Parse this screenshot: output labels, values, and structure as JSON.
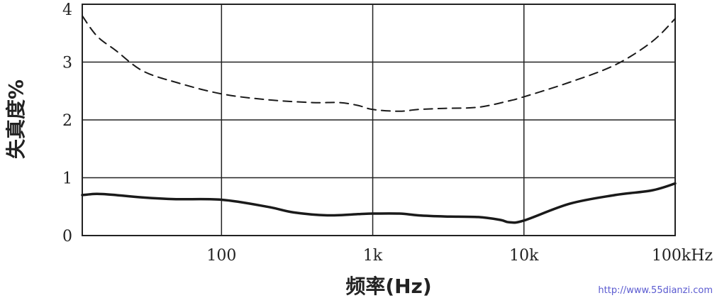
{
  "chart_data": {
    "type": "line",
    "title": "",
    "xlabel": "频率(Hz)",
    "ylabel": "失真度%",
    "x_scale": "log",
    "xlim": [
      12,
      100000
    ],
    "ylim": [
      0,
      4
    ],
    "x_ticks": [
      {
        "value": 100,
        "label": "100"
      },
      {
        "value": 1000,
        "label": "1k"
      },
      {
        "value": 10000,
        "label": "10k"
      },
      {
        "value": 100000,
        "label": "100kHz"
      }
    ],
    "y_ticks": [
      {
        "value": 0,
        "label": "0"
      },
      {
        "value": 1,
        "label": "1"
      },
      {
        "value": 2,
        "label": "2"
      },
      {
        "value": 3,
        "label": "3"
      },
      {
        "value": 4,
        "label": "4"
      }
    ],
    "grid": true,
    "series": [
      {
        "style": "dashed",
        "x": [
          12,
          15,
          20,
          30,
          50,
          100,
          200,
          400,
          600,
          800,
          1000,
          1500,
          2000,
          3000,
          5000,
          8000,
          10000,
          20000,
          40000,
          70000,
          100000
        ],
        "y": [
          3.8,
          3.45,
          3.2,
          2.85,
          2.65,
          2.45,
          2.35,
          2.3,
          2.3,
          2.25,
          2.18,
          2.15,
          2.18,
          2.2,
          2.22,
          2.33,
          2.4,
          2.65,
          2.95,
          3.35,
          3.75
        ]
      },
      {
        "style": "solid",
        "x": [
          12,
          15,
          20,
          30,
          50,
          100,
          200,
          300,
          500,
          800,
          1000,
          1500,
          2000,
          3000,
          5000,
          7000,
          8000,
          10000,
          20000,
          40000,
          70000,
          100000
        ],
        "y": [
          0.7,
          0.72,
          0.7,
          0.66,
          0.63,
          0.62,
          0.5,
          0.4,
          0.35,
          0.37,
          0.38,
          0.38,
          0.35,
          0.33,
          0.32,
          0.27,
          0.23,
          0.26,
          0.55,
          0.7,
          0.78,
          0.9
        ]
      }
    ]
  },
  "watermark": "http://www.55dianzi.com"
}
